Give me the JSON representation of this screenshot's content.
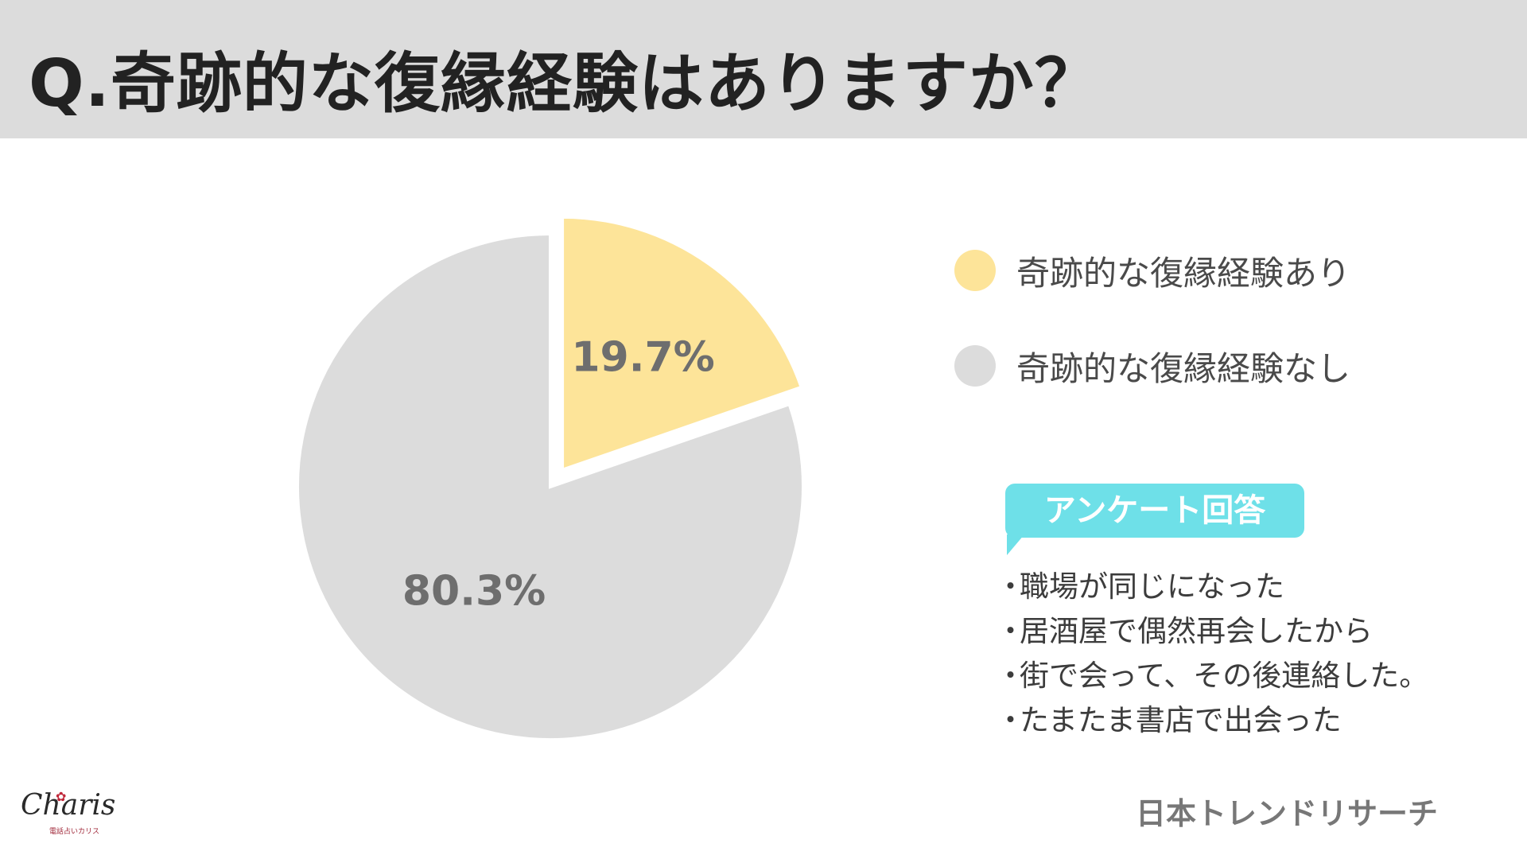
{
  "header": {
    "title": "Q.奇跡的な復縁経験はありますか？"
  },
  "chart_data": {
    "type": "pie",
    "title": "Q.奇跡的な復縁経験はありますか？",
    "slices": [
      {
        "label": "奇跡的な復縁経験あり",
        "value": 19.7,
        "display": "19.7%",
        "color": "#fde499",
        "exploded": true
      },
      {
        "label": "奇跡的な復縁経験なし",
        "value": 80.3,
        "display": "80.3%",
        "color": "#dcdcdc",
        "exploded": false
      }
    ],
    "legend_position": "right"
  },
  "legend": {
    "items": [
      {
        "label": "奇跡的な復縁経験あり",
        "color": "#fde499"
      },
      {
        "label": "奇跡的な復縁経験なし",
        "color": "#dcdcdc"
      }
    ]
  },
  "survey": {
    "heading": "アンケート回答",
    "bullet": "・",
    "comments": [
      "職場が同じになった",
      "居酒屋で偶然再会したから",
      "街で会って、その後連絡した。",
      "たまたま書店で出会った"
    ]
  },
  "source": "日本トレンドリサーチ",
  "logo": {
    "name": "Charis",
    "subtitle": "電話占いカリス"
  },
  "colors": {
    "header_bg": "#dcdcdc",
    "accent_bubble": "#6ee0e8",
    "yes": "#fde499",
    "no": "#dcdcdc"
  }
}
